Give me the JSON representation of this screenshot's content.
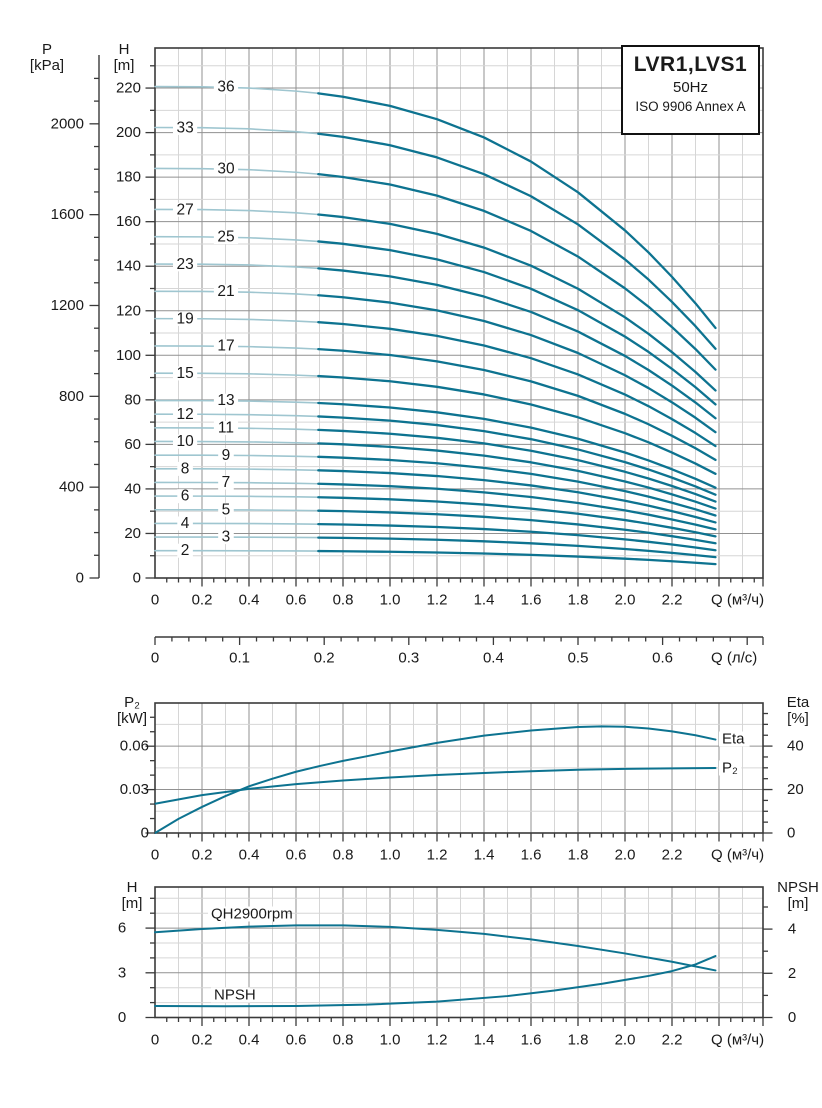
{
  "title_box": {
    "model": "LVR1,LVS1",
    "frequency": "50Hz",
    "standard": "ISO 9906 Annex A"
  },
  "axis_titles": {
    "pressure": {
      "line1": "P",
      "line2": "[kPa]"
    },
    "head_main": {
      "line1": "H",
      "line2": "[m]"
    },
    "power": {
      "line1": "P₂",
      "line2": "[kW]"
    },
    "eta": {
      "line1": "Eta",
      "line2": "[%]"
    },
    "head_single": {
      "line1": "H",
      "line2": "[m]"
    },
    "npsh": {
      "line1": "NPSH",
      "line2": "[m]"
    }
  },
  "colors": {
    "curve_dark": "#0d7390",
    "curve_light": "#9fc6d0",
    "grid_minor": "#d6d6d6",
    "grid_major": "#919191",
    "axis": "#3a3a3a",
    "text": "#1a1a1a"
  },
  "chart_data": [
    {
      "id": "main_multistage_qh",
      "type": "line",
      "title": "LVR1,LVS1 50Hz ISO 9906 Annex A",
      "x_axis": {
        "label": "Q (м³/ч)",
        "tick_values": [
          0,
          0.2,
          0.4,
          0.6,
          0.8,
          1.0,
          1.2,
          1.4,
          1.6,
          1.8,
          2.0,
          2.2
        ],
        "tick_labels": [
          "0",
          "0.2",
          "0.4",
          "0.6",
          "0.8",
          "1.0",
          "1.2",
          "1.4",
          "1.6",
          "1.8",
          "2.0",
          "2.2"
        ],
        "minor_step": 0.05,
        "range": [
          0,
          2.59
        ]
      },
      "y_axis_head": {
        "label": "H [m]",
        "tick_values": [
          0,
          20,
          40,
          60,
          80,
          100,
          120,
          140,
          160,
          180,
          200,
          220
        ],
        "tick_labels": [
          "0",
          "20",
          "40",
          "60",
          "80",
          "100",
          "120",
          "140",
          "160",
          "180",
          "200",
          "220"
        ],
        "minor_step": 10,
        "range": [
          0,
          238
        ]
      },
      "y_axis_pressure": {
        "label": "P [kPa]",
        "tick_values": [
          0,
          400,
          800,
          1200,
          1600,
          2000
        ],
        "tick_labels": [
          "0",
          "400",
          "800",
          "1200",
          "1600",
          "2000"
        ],
        "minor_step": 100,
        "max_minor_tick": 2200
      },
      "stage_curves": {
        "head_per_stage_m": 6.13,
        "q_end": 2.385,
        "q_split_light_dark": 0.695,
        "shape_ratio": [
          [
            0,
            1
          ],
          [
            0.2,
            0.9995
          ],
          [
            0.4,
            0.997
          ],
          [
            0.6,
            0.9907
          ],
          [
            0.695,
            0.9862
          ],
          [
            0.8,
            0.9792
          ],
          [
            1.0,
            0.9607
          ],
          [
            1.2,
            0.9336
          ],
          [
            1.4,
            0.8964
          ],
          [
            1.6,
            0.8474
          ],
          [
            1.8,
            0.7848
          ],
          [
            2.0,
            0.7072
          ],
          [
            2.1,
            0.6625
          ],
          [
            2.2,
            0.6127
          ],
          [
            2.3,
            0.5589
          ],
          [
            2.385,
            0.5088
          ]
        ],
        "label_column_q": {
          "a": 0.128,
          "b": 0.302
        },
        "stages": [
          {
            "n": 2,
            "col": "a"
          },
          {
            "n": 3,
            "col": "b"
          },
          {
            "n": 4,
            "col": "a"
          },
          {
            "n": 5,
            "col": "b"
          },
          {
            "n": 6,
            "col": "a"
          },
          {
            "n": 7,
            "col": "b"
          },
          {
            "n": 8,
            "col": "a"
          },
          {
            "n": 9,
            "col": "b"
          },
          {
            "n": 10,
            "col": "a"
          },
          {
            "n": 11,
            "col": "b"
          },
          {
            "n": 12,
            "col": "a"
          },
          {
            "n": 13,
            "col": "b"
          },
          {
            "n": 15,
            "col": "a"
          },
          {
            "n": 17,
            "col": "b"
          },
          {
            "n": 19,
            "col": "a"
          },
          {
            "n": 21,
            "col": "b"
          },
          {
            "n": 23,
            "col": "a"
          },
          {
            "n": 25,
            "col": "b"
          },
          {
            "n": 27,
            "col": "a"
          },
          {
            "n": 30,
            "col": "b"
          },
          {
            "n": 33,
            "col": "a"
          },
          {
            "n": 36,
            "col": "b"
          }
        ]
      }
    },
    {
      "id": "flow_axis_ls",
      "type": "axis",
      "label": "Q (л/с)",
      "tick_values": [
        0,
        0.1,
        0.2,
        0.3,
        0.4,
        0.5,
        0.6
      ],
      "tick_labels": [
        "0",
        "0.1",
        "0.2",
        "0.3",
        "0.4",
        "0.5",
        "0.6"
      ],
      "minor_step": 0.02,
      "m3h_per_ls": 3.6
    },
    {
      "id": "power_efficiency",
      "type": "line",
      "x_axis": {
        "label": "Q (м³/ч)",
        "tick_values": [
          0,
          0.2,
          0.4,
          0.6,
          0.8,
          1.0,
          1.2,
          1.4,
          1.6,
          1.8,
          2.0,
          2.2
        ],
        "tick_labels": [
          "0",
          "0.2",
          "0.4",
          "0.6",
          "0.8",
          "1.0",
          "1.2",
          "1.4",
          "1.6",
          "1.8",
          "2.0",
          "2.2"
        ],
        "minor_step": 0.05
      },
      "y_axis_left": {
        "label": "P₂ [kW]",
        "tick_values": [
          0,
          0.03,
          0.06
        ],
        "tick_labels": [
          "0",
          "0.03",
          "0.06"
        ],
        "minor_step": 0.01,
        "range": [
          0,
          0.09
        ]
      },
      "y_axis_right": {
        "label": "Eta [%]",
        "tick_values": [
          0,
          20,
          40
        ],
        "tick_labels": [
          "0",
          "20",
          "40"
        ],
        "minor_step": 5,
        "range": [
          0,
          59.8
        ]
      },
      "series": [
        {
          "name": "P₂",
          "axis": "left",
          "points": [
            [
              0,
              0.0202
            ],
            [
              0.2,
              0.0262
            ],
            [
              0.4,
              0.0305
            ],
            [
              0.6,
              0.0338
            ],
            [
              0.8,
              0.0363
            ],
            [
              1.0,
              0.0384
            ],
            [
              1.2,
              0.0401
            ],
            [
              1.4,
              0.0415
            ],
            [
              1.6,
              0.0427
            ],
            [
              1.8,
              0.0437
            ],
            [
              2.0,
              0.0443
            ],
            [
              2.2,
              0.0447
            ],
            [
              2.385,
              0.0449
            ]
          ]
        },
        {
          "name": "Eta",
          "axis": "right",
          "points": [
            [
              0,
              0
            ],
            [
              0.1,
              6.5
            ],
            [
              0.2,
              12
            ],
            [
              0.3,
              17
            ],
            [
              0.4,
              21.5
            ],
            [
              0.5,
              25
            ],
            [
              0.6,
              28.2
            ],
            [
              0.7,
              30.8
            ],
            [
              0.8,
              33.2
            ],
            [
              0.9,
              35.3
            ],
            [
              1.0,
              37.5
            ],
            [
              1.2,
              41.5
            ],
            [
              1.4,
              44.8
            ],
            [
              1.6,
              47.2
            ],
            [
              1.8,
              48.8
            ],
            [
              1.9,
              49.1
            ],
            [
              2.0,
              48.9
            ],
            [
              2.1,
              48.1
            ],
            [
              2.2,
              46.8
            ],
            [
              2.3,
              45
            ],
            [
              2.385,
              43
            ]
          ]
        }
      ]
    },
    {
      "id": "single_stage_qh_npsh",
      "type": "line",
      "x_axis": {
        "label": "Q (м³/ч)",
        "tick_values": [
          0,
          0.2,
          0.4,
          0.6,
          0.8,
          1.0,
          1.2,
          1.4,
          1.6,
          1.8,
          2.0,
          2.2
        ],
        "tick_labels": [
          "0",
          "0.2",
          "0.4",
          "0.6",
          "0.8",
          "1.0",
          "1.2",
          "1.4",
          "1.6",
          "1.8",
          "2.0",
          "2.2"
        ],
        "minor_step": 0.05
      },
      "y_axis_left": {
        "label": "H [m]",
        "tick_values": [
          0,
          3,
          6
        ],
        "tick_labels": [
          "0",
          "3",
          "6"
        ],
        "minor_step": 1,
        "range": [
          0,
          8.76
        ]
      },
      "y_axis_right": {
        "label": "NPSH [m]",
        "tick_values": [
          0,
          2,
          4
        ],
        "tick_labels": [
          "0",
          "2",
          "4"
        ],
        "minor_step": 1,
        "range": [
          0,
          5.9
        ]
      },
      "series": [
        {
          "name": "QH2900rpm",
          "axis": "left",
          "points": [
            [
              0,
              5.72
            ],
            [
              0.2,
              5.94
            ],
            [
              0.4,
              6.1
            ],
            [
              0.6,
              6.18
            ],
            [
              0.8,
              6.18
            ],
            [
              1.0,
              6.08
            ],
            [
              1.2,
              5.88
            ],
            [
              1.4,
              5.61
            ],
            [
              1.6,
              5.24
            ],
            [
              1.8,
              4.8
            ],
            [
              2.0,
              4.3
            ],
            [
              2.2,
              3.74
            ],
            [
              2.385,
              3.16
            ]
          ]
        },
        {
          "name": "NPSH",
          "axis": "right",
          "points": [
            [
              0,
              0.52
            ],
            [
              0.3,
              0.51
            ],
            [
              0.6,
              0.52
            ],
            [
              0.9,
              0.58
            ],
            [
              1.2,
              0.72
            ],
            [
              1.5,
              0.97
            ],
            [
              1.7,
              1.22
            ],
            [
              1.9,
              1.52
            ],
            [
              2.1,
              1.88
            ],
            [
              2.2,
              2.1
            ],
            [
              2.3,
              2.4
            ],
            [
              2.385,
              2.78
            ]
          ]
        }
      ]
    }
  ]
}
